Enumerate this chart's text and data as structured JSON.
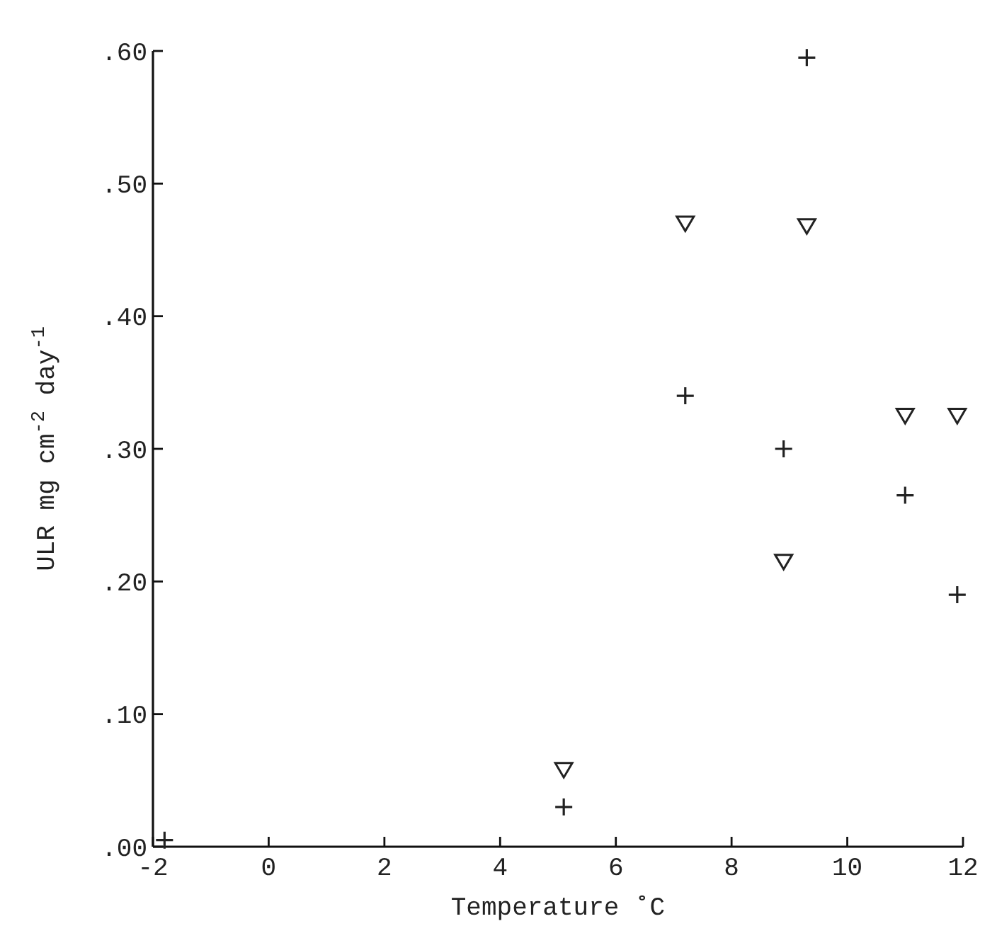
{
  "chart_data": {
    "type": "scatter",
    "xlabel": "Temperature ˚C",
    "ylabel": "ULR mg cm$^{-2}$ day$^{-1}$",
    "xlim": [
      -2,
      12
    ],
    "ylim": [
      0,
      0.6
    ],
    "xticks": [
      -2,
      0,
      2,
      4,
      6,
      8,
      10,
      12
    ],
    "yticks": [
      {
        "value": 0,
        "label": ".00"
      },
      {
        "value": 0.1,
        "label": ".10"
      },
      {
        "value": 0.2,
        "label": ".20"
      },
      {
        "value": 0.3,
        "label": ".30"
      },
      {
        "value": 0.4,
        "label": ".40"
      },
      {
        "value": 0.5,
        "label": ".50"
      },
      {
        "value": 0.6,
        "label": ".60"
      }
    ],
    "grid": false,
    "series": [
      {
        "color": "#222222",
        "marker": "cross",
        "x": [
          -1.8,
          5.1,
          7.2,
          8.9,
          9.3,
          11.0,
          11.9
        ],
        "values": [
          0.005,
          0.03,
          0.34,
          0.3,
          0.595,
          0.265,
          0.19
        ]
      },
      {
        "color": "#222222",
        "marker": "triangle",
        "x": [
          5.1,
          7.2,
          8.9,
          9.3,
          11.0,
          11.9
        ],
        "values": [
          0.058,
          0.47,
          0.215,
          0.468,
          0.325,
          0.325
        ]
      }
    ]
  }
}
